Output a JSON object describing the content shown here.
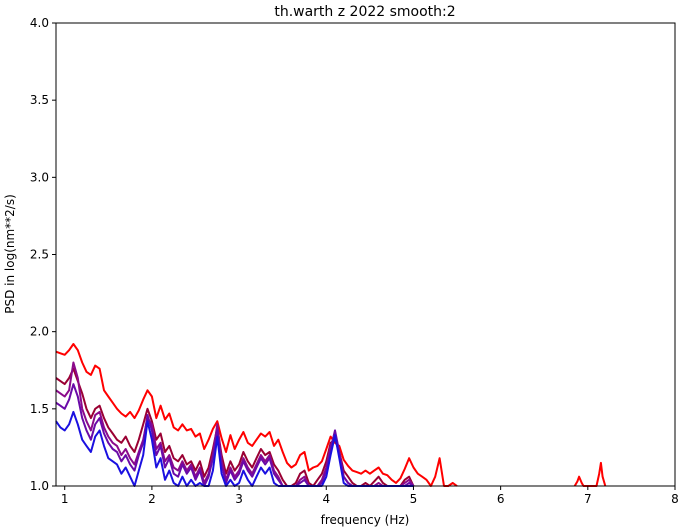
{
  "chart_data": {
    "type": "line",
    "title": "th.warth z 2022 smooth:2",
    "xlabel": "frequency (Hz)",
    "ylabel": "PSD in log(nm**2/s)",
    "xlim": [
      0.9,
      8
    ],
    "ylim": [
      1.0,
      4.0
    ],
    "xticks": [
      "1",
      "2",
      "3",
      "4",
      "5",
      "6",
      "7",
      "8"
    ],
    "yticks": [
      "1.0",
      "1.5",
      "2.0",
      "2.5",
      "3.0",
      "3.5",
      "4.0"
    ],
    "grid": false,
    "legend": "none",
    "series": [
      {
        "color": "#ff0000",
        "x": [
          0.9,
          0.95,
          1.0,
          1.05,
          1.1,
          1.15,
          1.2,
          1.25,
          1.3,
          1.35,
          1.4,
          1.45,
          1.5,
          1.55,
          1.6,
          1.65,
          1.7,
          1.75,
          1.8,
          1.85,
          1.9,
          1.95,
          2.0,
          2.05,
          2.1,
          2.15,
          2.2,
          2.25,
          2.3,
          2.35,
          2.4,
          2.45,
          2.5,
          2.55,
          2.6,
          2.65,
          2.7,
          2.75,
          2.8,
          2.85,
          2.9,
          2.95,
          3.0,
          3.05,
          3.1,
          3.15,
          3.2,
          3.25,
          3.3,
          3.35,
          3.4,
          3.45,
          3.5,
          3.55,
          3.6,
          3.65,
          3.7,
          3.75,
          3.8,
          3.85,
          3.9,
          3.95,
          4.0,
          4.05,
          4.1,
          4.15,
          4.2,
          4.25,
          4.3,
          4.35,
          4.4,
          4.45,
          4.5,
          4.55,
          4.6,
          4.65,
          4.7,
          4.75,
          4.8,
          4.85,
          4.9,
          4.95,
          5.0,
          5.05,
          5.1,
          5.15,
          5.2,
          5.25,
          5.3,
          5.35,
          5.4,
          5.45,
          5.5
        ],
        "y": [
          1.87,
          1.86,
          1.85,
          1.88,
          1.92,
          1.88,
          1.8,
          1.74,
          1.72,
          1.78,
          1.76,
          1.62,
          1.58,
          1.54,
          1.5,
          1.47,
          1.45,
          1.48,
          1.44,
          1.49,
          1.56,
          1.62,
          1.58,
          1.44,
          1.52,
          1.43,
          1.47,
          1.38,
          1.36,
          1.4,
          1.36,
          1.37,
          1.32,
          1.34,
          1.24,
          1.3,
          1.37,
          1.42,
          1.31,
          1.22,
          1.33,
          1.24,
          1.3,
          1.35,
          1.28,
          1.26,
          1.3,
          1.34,
          1.32,
          1.35,
          1.26,
          1.3,
          1.22,
          1.15,
          1.12,
          1.14,
          1.2,
          1.22,
          1.1,
          1.12,
          1.13,
          1.16,
          1.24,
          1.32,
          1.28,
          1.26,
          1.17,
          1.13,
          1.1,
          1.09,
          1.08,
          1.1,
          1.08,
          1.1,
          1.12,
          1.08,
          1.07,
          1.04,
          1.02,
          1.05,
          1.11,
          1.18,
          1.12,
          1.08,
          1.06,
          1.04,
          1.0,
          1.06,
          1.18,
          1.0,
          1.0,
          1.02,
          1.0
        ]
      },
      {
        "color": "#9a0033",
        "x": [
          0.9,
          0.95,
          1.0,
          1.05,
          1.1,
          1.15,
          1.2,
          1.25,
          1.3,
          1.35,
          1.4,
          1.45,
          1.5,
          1.55,
          1.6,
          1.65,
          1.7,
          1.75,
          1.8,
          1.85,
          1.9,
          1.95,
          2.0,
          2.05,
          2.1,
          2.15,
          2.2,
          2.25,
          2.3,
          2.35,
          2.4,
          2.45,
          2.5,
          2.55,
          2.6,
          2.65,
          2.7,
          2.75,
          2.8,
          2.85,
          2.9,
          2.95,
          3.0,
          3.05,
          3.1,
          3.15,
          3.2,
          3.25,
          3.3,
          3.35,
          3.4,
          3.45,
          3.5,
          3.55,
          3.6,
          3.65,
          3.7,
          3.75,
          3.8,
          3.85,
          3.9,
          3.95,
          4.0,
          4.05,
          4.1,
          4.15,
          4.2,
          4.25,
          4.3,
          4.35,
          4.4,
          4.45,
          4.5,
          4.55,
          4.6,
          4.65,
          4.7,
          4.75,
          4.8,
          4.85,
          4.9,
          4.95,
          5.0
        ],
        "y": [
          1.7,
          1.68,
          1.66,
          1.7,
          1.76,
          1.68,
          1.6,
          1.5,
          1.44,
          1.5,
          1.52,
          1.44,
          1.38,
          1.34,
          1.3,
          1.28,
          1.32,
          1.26,
          1.22,
          1.3,
          1.4,
          1.5,
          1.42,
          1.3,
          1.34,
          1.22,
          1.26,
          1.18,
          1.16,
          1.2,
          1.14,
          1.16,
          1.1,
          1.16,
          1.06,
          1.12,
          1.24,
          1.38,
          1.2,
          1.08,
          1.16,
          1.1,
          1.14,
          1.22,
          1.16,
          1.12,
          1.18,
          1.24,
          1.2,
          1.22,
          1.14,
          1.1,
          1.04,
          1.0,
          1.0,
          1.02,
          1.08,
          1.1,
          1.02,
          1.0,
          1.04,
          1.08,
          1.16,
          1.28,
          1.3,
          1.22,
          1.1,
          1.06,
          1.02,
          1.0,
          1.0,
          1.02,
          1.0,
          1.03,
          1.06,
          1.02,
          1.0,
          1.0,
          1.0,
          1.0,
          1.04,
          1.06,
          1.0
        ]
      },
      {
        "color": "#8b0a8b",
        "x": [
          0.9,
          0.95,
          1.0,
          1.05,
          1.1,
          1.15,
          1.2,
          1.25,
          1.3,
          1.35,
          1.4,
          1.45,
          1.5,
          1.55,
          1.6,
          1.65,
          1.7,
          1.75,
          1.8,
          1.85,
          1.9,
          1.95,
          2.0,
          2.05,
          2.1,
          2.15,
          2.2,
          2.25,
          2.3,
          2.35,
          2.4,
          2.45,
          2.5,
          2.55,
          2.6,
          2.65,
          2.7,
          2.75,
          2.8,
          2.85,
          2.9,
          2.95,
          3.0,
          3.05,
          3.1,
          3.15,
          3.2,
          3.25,
          3.3,
          3.35,
          3.4,
          3.45,
          3.5,
          3.55,
          3.6,
          3.65,
          3.7,
          3.75,
          3.8,
          3.85,
          3.9,
          3.95,
          4.0,
          4.05,
          4.1,
          4.15,
          4.2,
          4.25,
          4.3,
          4.35,
          4.4,
          4.45,
          4.5,
          4.55,
          4.6,
          4.65,
          4.7,
          4.75,
          4.8,
          4.85,
          4.9,
          4.95,
          5.0
        ],
        "y": [
          1.62,
          1.6,
          1.58,
          1.62,
          1.8,
          1.7,
          1.5,
          1.42,
          1.36,
          1.46,
          1.48,
          1.38,
          1.32,
          1.28,
          1.26,
          1.2,
          1.24,
          1.18,
          1.14,
          1.22,
          1.3,
          1.44,
          1.4,
          1.24,
          1.28,
          1.16,
          1.2,
          1.12,
          1.1,
          1.16,
          1.1,
          1.14,
          1.06,
          1.12,
          1.02,
          1.08,
          1.2,
          1.4,
          1.16,
          1.04,
          1.12,
          1.06,
          1.1,
          1.18,
          1.12,
          1.08,
          1.14,
          1.2,
          1.16,
          1.2,
          1.1,
          1.06,
          1.0,
          1.0,
          1.0,
          1.0,
          1.04,
          1.06,
          1.0,
          1.0,
          1.0,
          1.04,
          1.12,
          1.26,
          1.33,
          1.2,
          1.06,
          1.02,
          1.0,
          1.0,
          1.0,
          1.0,
          1.0,
          1.0,
          1.02,
          1.0,
          1.0,
          1.0,
          1.0,
          1.0,
          1.02,
          1.04,
          1.0
        ]
      },
      {
        "color": "#6a0aa8",
        "x": [
          0.9,
          0.95,
          1.0,
          1.05,
          1.1,
          1.15,
          1.2,
          1.25,
          1.3,
          1.35,
          1.4,
          1.45,
          1.5,
          1.55,
          1.6,
          1.65,
          1.7,
          1.75,
          1.8,
          1.85,
          1.9,
          1.95,
          2.0,
          2.05,
          2.1,
          2.15,
          2.2,
          2.25,
          2.3,
          2.35,
          2.4,
          2.45,
          2.5,
          2.55,
          2.6,
          2.65,
          2.7,
          2.75,
          2.8,
          2.85,
          2.9,
          2.95,
          3.0,
          3.05,
          3.1,
          3.15,
          3.2,
          3.25,
          3.3,
          3.35,
          3.4,
          3.45,
          3.5,
          3.55,
          3.6,
          3.65,
          3.7,
          3.75,
          3.8,
          3.85,
          3.9,
          3.95,
          4.0,
          4.05,
          4.1,
          4.15,
          4.2,
          4.25,
          4.3,
          4.35,
          4.4,
          4.45,
          4.5,
          4.55,
          4.6,
          4.65,
          4.7,
          4.75,
          4.8,
          4.85,
          4.9,
          4.95,
          5.0
        ],
        "y": [
          1.54,
          1.52,
          1.5,
          1.56,
          1.66,
          1.58,
          1.44,
          1.36,
          1.3,
          1.4,
          1.44,
          1.34,
          1.28,
          1.24,
          1.22,
          1.16,
          1.2,
          1.14,
          1.1,
          1.2,
          1.28,
          1.46,
          1.36,
          1.2,
          1.26,
          1.12,
          1.18,
          1.08,
          1.06,
          1.14,
          1.08,
          1.12,
          1.04,
          1.1,
          1.0,
          1.06,
          1.18,
          1.36,
          1.14,
          1.02,
          1.1,
          1.04,
          1.08,
          1.16,
          1.1,
          1.06,
          1.12,
          1.18,
          1.14,
          1.18,
          1.08,
          1.04,
          1.0,
          1.0,
          1.0,
          1.0,
          1.02,
          1.04,
          1.0,
          1.0,
          1.0,
          1.02,
          1.1,
          1.24,
          1.36,
          1.22,
          1.06,
          1.02,
          1.0,
          1.0,
          1.0,
          1.0,
          1.0,
          1.0,
          1.0,
          1.0,
          1.0,
          1.0,
          1.0,
          1.0,
          1.0,
          1.02,
          1.0
        ]
      },
      {
        "color": "#1a10e0",
        "x": [
          0.9,
          0.95,
          1.0,
          1.05,
          1.1,
          1.15,
          1.2,
          1.25,
          1.3,
          1.35,
          1.4,
          1.45,
          1.5,
          1.55,
          1.6,
          1.65,
          1.7,
          1.75,
          1.8,
          1.85,
          1.9,
          1.95,
          2.0,
          2.05,
          2.1,
          2.15,
          2.2,
          2.25,
          2.3,
          2.35,
          2.4,
          2.45,
          2.5,
          2.55,
          2.6,
          2.65,
          2.7,
          2.75,
          2.8,
          2.85,
          2.9,
          2.95,
          3.0,
          3.05,
          3.1,
          3.15,
          3.2,
          3.25,
          3.3,
          3.35,
          3.4,
          3.45,
          3.5,
          3.55,
          3.6,
          3.65,
          3.7,
          3.75,
          3.8,
          3.85,
          3.9,
          3.95,
          4.0,
          4.05,
          4.1,
          4.15,
          4.2,
          4.25,
          4.3,
          4.35,
          4.4,
          4.45,
          4.5,
          4.55,
          4.6,
          4.65,
          4.7,
          4.75,
          4.8,
          4.85,
          4.9,
          4.95,
          5.0
        ],
        "y": [
          1.42,
          1.38,
          1.36,
          1.4,
          1.48,
          1.4,
          1.3,
          1.26,
          1.22,
          1.32,
          1.36,
          1.26,
          1.18,
          1.16,
          1.14,
          1.08,
          1.12,
          1.06,
          1.0,
          1.1,
          1.2,
          1.42,
          1.3,
          1.12,
          1.18,
          1.04,
          1.1,
          1.02,
          1.0,
          1.06,
          1.0,
          1.04,
          1.0,
          1.02,
          1.0,
          1.0,
          1.1,
          1.32,
          1.08,
          1.0,
          1.04,
          1.0,
          1.02,
          1.1,
          1.04,
          1.0,
          1.06,
          1.12,
          1.08,
          1.12,
          1.02,
          1.0,
          1.0,
          1.0,
          1.0,
          1.0,
          1.0,
          1.0,
          1.0,
          1.0,
          1.0,
          1.0,
          1.06,
          1.2,
          1.33,
          1.18,
          1.02,
          1.0,
          1.0,
          1.0,
          1.0,
          1.0,
          1.0,
          1.0,
          1.0,
          1.0,
          1.0,
          1.0,
          1.0,
          1.0,
          1.0,
          1.0,
          1.0
        ]
      },
      {
        "color": "#ff0000",
        "x": [
          6.85,
          6.88,
          6.9,
          6.93,
          6.95,
          7.1,
          7.13,
          7.15,
          7.17,
          7.2
        ],
        "y": [
          1.0,
          1.03,
          1.06,
          1.02,
          1.0,
          1.0,
          1.08,
          1.15,
          1.06,
          1.0
        ]
      }
    ]
  }
}
